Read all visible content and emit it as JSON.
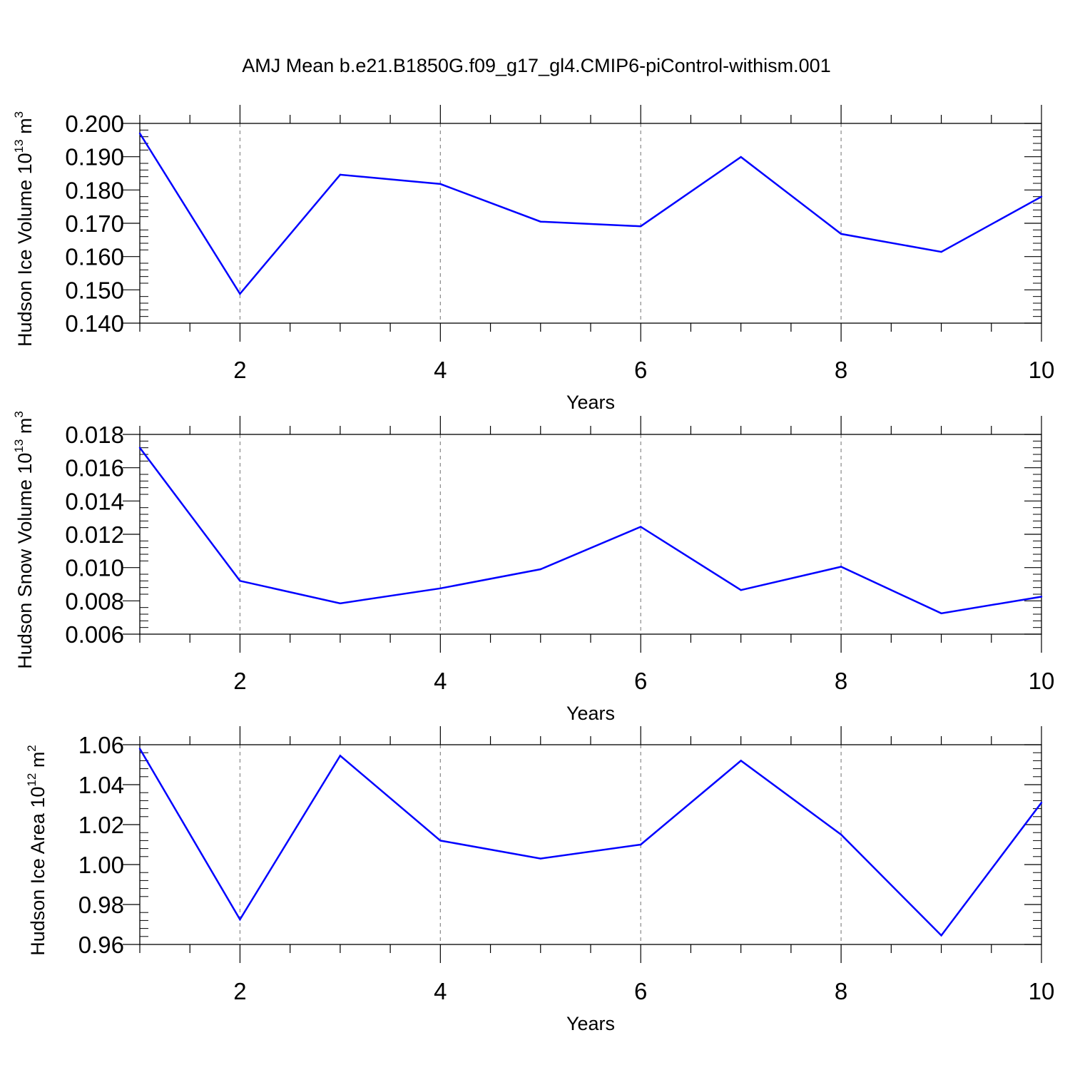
{
  "title": "AMJ Mean b.e21.B1850G.f09_g17_gl4.CMIP6-piControl-withism.001",
  "colors": {
    "line": "#0000ff",
    "grid": "#888888",
    "axis": "#000000"
  },
  "chart_data": [
    {
      "type": "line",
      "xlabel": "Years",
      "ylabel": {
        "text": "Hudson Ice Volume 10",
        "exponent": "13",
        "unit": " m",
        "unit_exponent": "3"
      },
      "x": [
        1,
        2,
        3,
        4,
        5,
        6,
        7,
        8,
        9,
        10
      ],
      "values": [
        0.197,
        0.1488,
        0.1846,
        0.1818,
        0.1705,
        0.1691,
        0.1899,
        0.1668,
        0.1614,
        0.178
      ],
      "xlim": [
        1,
        10
      ],
      "ylim": [
        0.14,
        0.2
      ],
      "xticks": [
        "2",
        "4",
        "6",
        "8",
        "10"
      ],
      "yticks": [
        "0.140",
        "0.150",
        "0.160",
        "0.170",
        "0.180",
        "0.190",
        "0.200"
      ],
      "grid": "vertical dashed"
    },
    {
      "type": "line",
      "xlabel": "Years",
      "ylabel": {
        "text": "Hudson Snow Volume 10",
        "exponent": "13",
        "unit": " m",
        "unit_exponent": "3"
      },
      "x": [
        1,
        2,
        3,
        4,
        5,
        6,
        7,
        8,
        9,
        10
      ],
      "values": [
        0.0172,
        0.0092,
        0.00785,
        0.00875,
        0.0099,
        0.01245,
        0.00865,
        0.01005,
        0.00725,
        0.00825
      ],
      "xlim": [
        1,
        10
      ],
      "ylim": [
        0.006,
        0.018
      ],
      "xticks": [
        "2",
        "4",
        "6",
        "8",
        "10"
      ],
      "yticks": [
        "0.006",
        "0.008",
        "0.010",
        "0.012",
        "0.014",
        "0.016",
        "0.018"
      ],
      "grid": "vertical dashed"
    },
    {
      "type": "line",
      "xlabel": "Years",
      "ylabel": {
        "text": "Hudson Ice Area 10",
        "exponent": "12",
        "unit": " m",
        "unit_exponent": "2"
      },
      "x": [
        1,
        2,
        3,
        4,
        5,
        6,
        7,
        8,
        9,
        10
      ],
      "values": [
        1.058,
        0.9725,
        1.0545,
        1.012,
        1.003,
        1.01,
        1.052,
        1.015,
        0.9645,
        1.031
      ],
      "xlim": [
        1,
        10
      ],
      "ylim": [
        0.96,
        1.06
      ],
      "xticks": [
        "2",
        "4",
        "6",
        "8",
        "10"
      ],
      "yticks": [
        "0.96",
        "0.98",
        "1.00",
        "1.02",
        "1.04",
        "1.06"
      ],
      "grid": "vertical dashed"
    }
  ]
}
